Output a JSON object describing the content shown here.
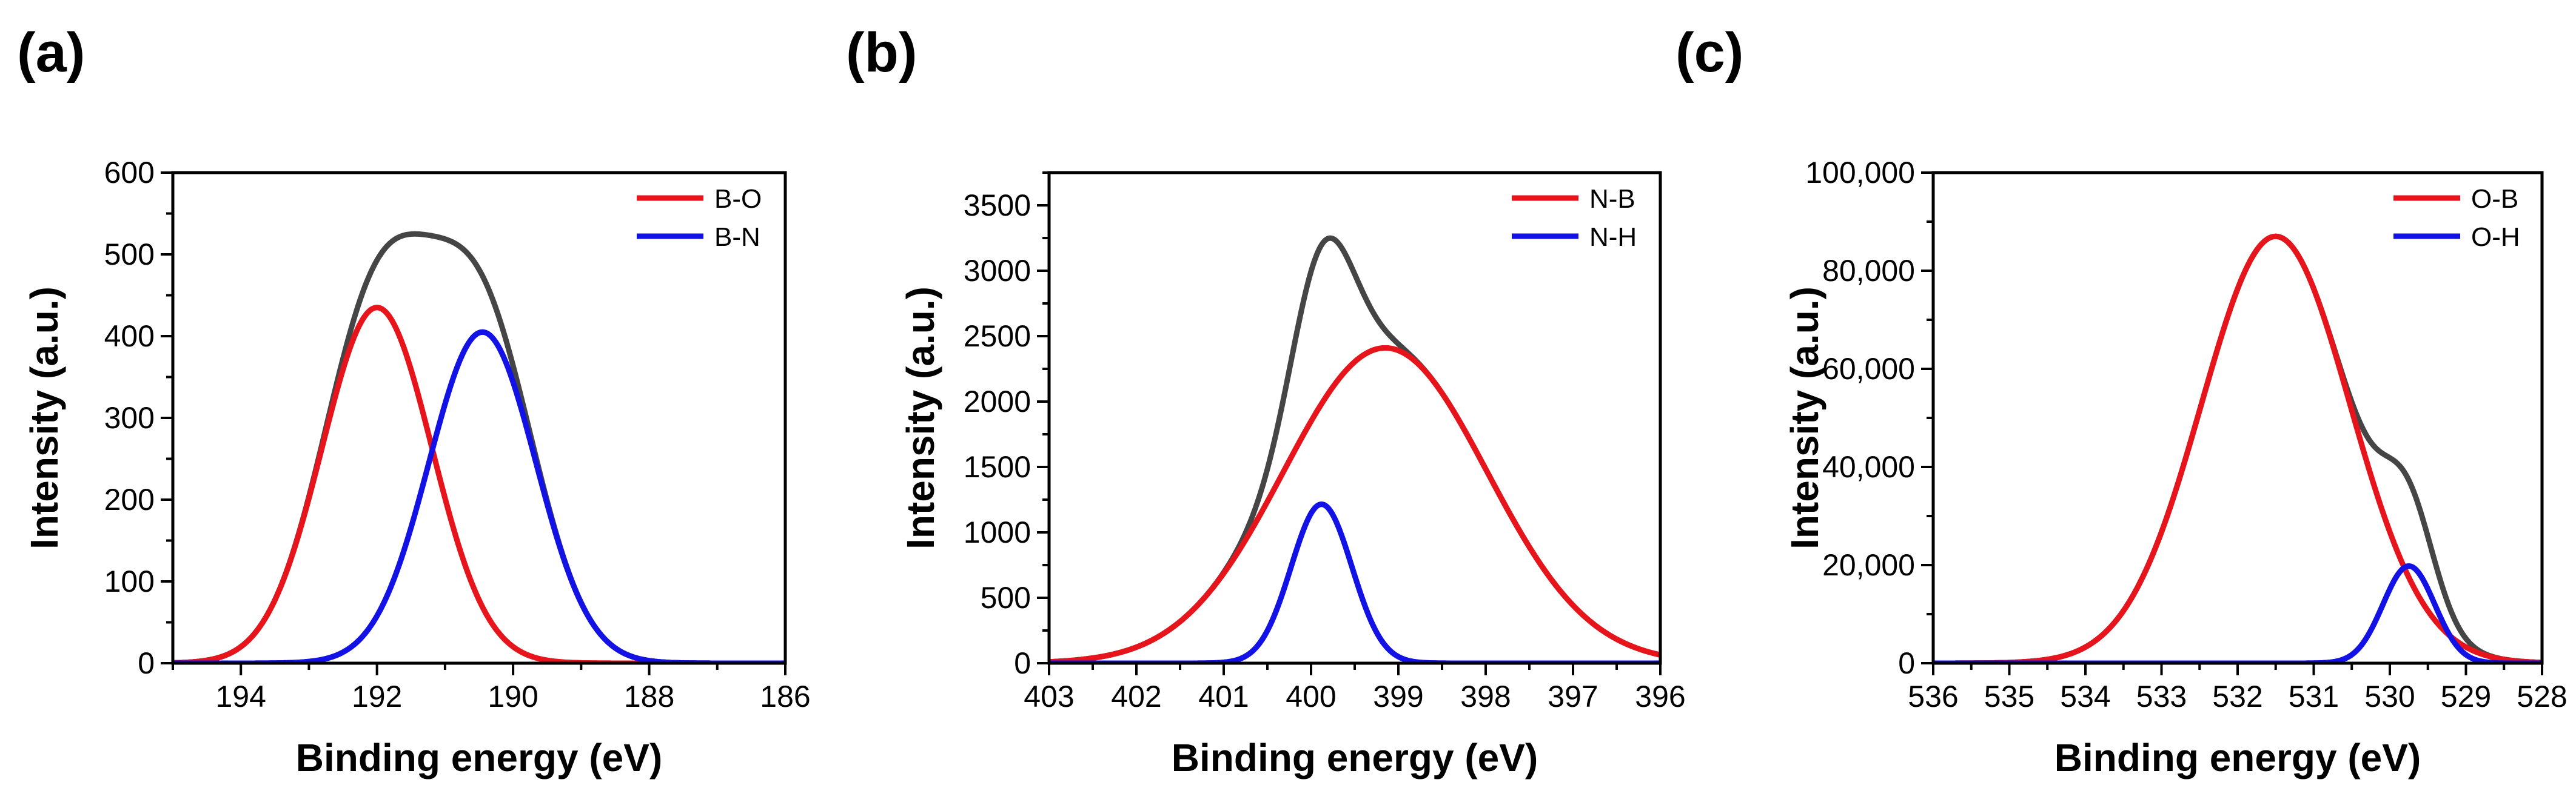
{
  "chart_data": [
    {
      "type": "line",
      "panel_label": "(a)",
      "xlabel": "Binding energy (eV)",
      "ylabel": "Intensity (a.u.)",
      "xlim": [
        195,
        186
      ],
      "ylim": [
        0,
        600
      ],
      "x_ticks": [
        194,
        192,
        190,
        188,
        186
      ],
      "x_tick_labels": [
        "194",
        "192",
        "190",
        "188",
        "186"
      ],
      "y_ticks": [
        0,
        100,
        200,
        300,
        400,
        500,
        600
      ],
      "y_tick_labels": [
        "0",
        "100",
        "200",
        "300",
        "400",
        "500",
        "600"
      ],
      "legend_position": "top-right",
      "series": [
        {
          "name": "B-O",
          "color": "#e8141b",
          "shape": "gaussian",
          "center": 192.0,
          "amplitude": 435,
          "fwhm": 1.9
        },
        {
          "name": "B-N",
          "color": "#1212e6",
          "shape": "gaussian",
          "center": 190.45,
          "amplitude": 405,
          "fwhm": 1.85
        }
      ],
      "envelope": {
        "color": "#454545",
        "of": [
          "B-O",
          "B-N"
        ]
      }
    },
    {
      "type": "line",
      "panel_label": "(b)",
      "xlabel": "Binding energy (eV)",
      "ylabel": "Intensity (a.u.)",
      "xlim": [
        403,
        396
      ],
      "ylim": [
        0,
        3750
      ],
      "x_ticks": [
        403,
        402,
        401,
        400,
        399,
        398,
        397,
        396
      ],
      "x_tick_labels": [
        "403",
        "402",
        "401",
        "400",
        "399",
        "398",
        "397",
        "396"
      ],
      "y_ticks": [
        0,
        500,
        1000,
        1500,
        2000,
        2500,
        3000,
        3500
      ],
      "y_tick_labels": [
        "0",
        "500",
        "1000",
        "1500",
        "2000",
        "2500",
        "3000",
        "3500"
      ],
      "legend_position": "top-right",
      "series": [
        {
          "name": "N-B",
          "color": "#e8141b",
          "shape": "gaussian",
          "center": 399.15,
          "amplitude": 2410,
          "fwhm": 2.75
        },
        {
          "name": "N-H",
          "color": "#1212e6",
          "shape": "gaussian",
          "center": 399.88,
          "amplitude": 1215,
          "fwhm": 0.82
        }
      ],
      "envelope": {
        "color": "#454545",
        "of": [
          "N-B",
          "N-H"
        ]
      }
    },
    {
      "type": "line",
      "panel_label": "(c)",
      "xlabel": "Binding energy (eV)",
      "ylabel": "Intensity (a.u.)",
      "xlim": [
        536,
        528
      ],
      "ylim": [
        0,
        100000
      ],
      "x_ticks": [
        536,
        535,
        534,
        533,
        532,
        531,
        530,
        529,
        528
      ],
      "x_tick_labels": [
        "536",
        "535",
        "534",
        "533",
        "532",
        "531",
        "530",
        "529",
        "528"
      ],
      "y_ticks": [
        0,
        20000,
        40000,
        60000,
        80000,
        100000
      ],
      "y_tick_labels": [
        "0",
        "20,000",
        "40,000",
        "60,000",
        "80,000",
        "100,000"
      ],
      "legend_position": "top-right",
      "series": [
        {
          "name": "O-B",
          "color": "#e8141b",
          "shape": "gaussian",
          "center": 531.5,
          "amplitude": 87000,
          "fwhm": 2.3
        },
        {
          "name": "O-H",
          "color": "#1212e6",
          "shape": "gaussian",
          "center": 529.75,
          "amplitude": 19800,
          "fwhm": 0.8
        }
      ],
      "envelope": {
        "color": "#454545",
        "of": [
          "O-B",
          "O-H"
        ]
      }
    }
  ]
}
